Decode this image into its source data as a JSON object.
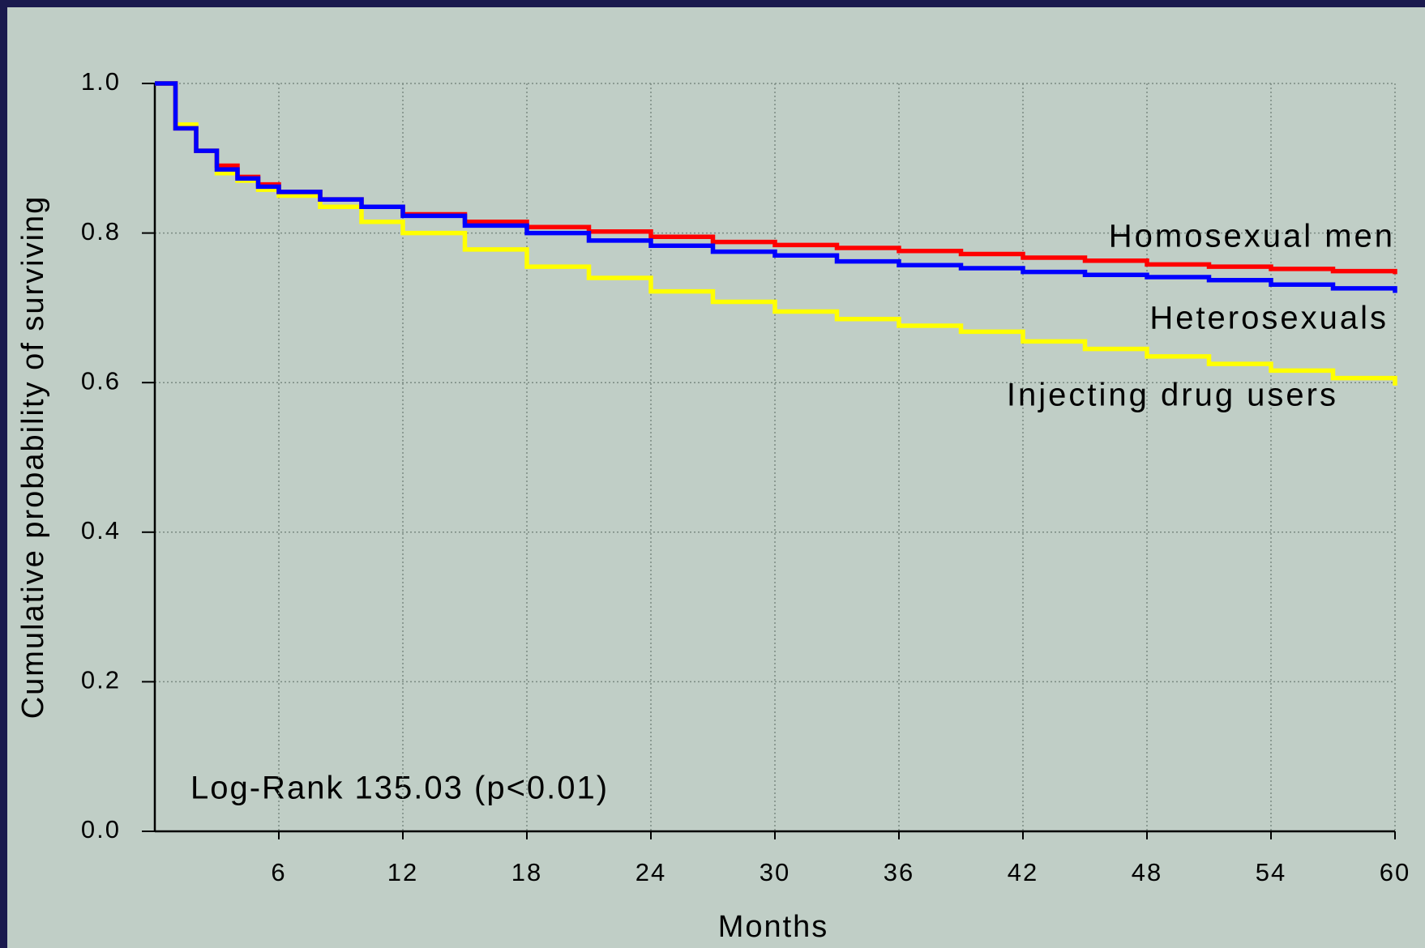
{
  "chart_data": {
    "type": "step",
    "x_label": "Months",
    "y_label": "Cumulative probability of surviving",
    "annotation": "Log-Rank 135.03 (p<0.01)",
    "x": [
      0,
      1,
      2,
      3,
      4,
      5,
      6,
      8,
      10,
      12,
      15,
      18,
      21,
      24,
      27,
      30,
      33,
      36,
      39,
      42,
      45,
      48,
      51,
      54,
      57,
      60
    ],
    "series": [
      {
        "name": "Homosexual men",
        "color": "#ff0000",
        "values": [
          1.0,
          0.94,
          0.91,
          0.89,
          0.875,
          0.865,
          0.855,
          0.845,
          0.835,
          0.825,
          0.815,
          0.808,
          0.802,
          0.795,
          0.788,
          0.784,
          0.78,
          0.776,
          0.772,
          0.767,
          0.763,
          0.758,
          0.755,
          0.752,
          0.749,
          0.745
        ]
      },
      {
        "name": "Heterosexuals",
        "color": "#0000ff",
        "values": [
          1.0,
          0.94,
          0.91,
          0.885,
          0.873,
          0.862,
          0.855,
          0.845,
          0.835,
          0.823,
          0.81,
          0.8,
          0.79,
          0.783,
          0.775,
          0.77,
          0.762,
          0.757,
          0.753,
          0.748,
          0.744,
          0.741,
          0.737,
          0.731,
          0.726,
          0.72
        ]
      },
      {
        "name": "Injecting drug users",
        "color": "#ffff00",
        "values": [
          1.0,
          0.945,
          0.91,
          0.88,
          0.87,
          0.858,
          0.85,
          0.835,
          0.815,
          0.8,
          0.778,
          0.755,
          0.74,
          0.722,
          0.708,
          0.695,
          0.685,
          0.676,
          0.668,
          0.655,
          0.645,
          0.635,
          0.625,
          0.616,
          0.606,
          0.596
        ]
      }
    ],
    "xlim": [
      0,
      60
    ],
    "xticks": [
      6,
      12,
      18,
      24,
      30,
      36,
      42,
      48,
      54,
      60
    ],
    "ylim": [
      0,
      1
    ],
    "yticks": [
      {
        "value": 0,
        "label": "0.0"
      },
      0.2,
      0.4,
      0.6,
      0.8,
      {
        "value": 1,
        "label": "1.0"
      }
    ],
    "grid": true
  }
}
